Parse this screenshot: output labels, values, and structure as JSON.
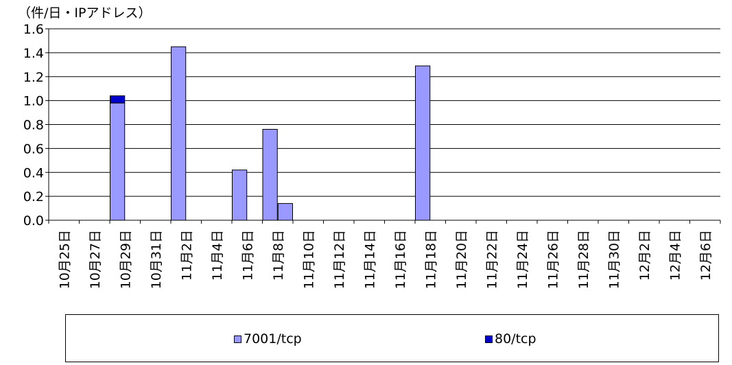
{
  "chart_data": {
    "type": "bar",
    "stacked": true,
    "unit_label": "（件/日・IPアドレス）",
    "categories": [
      "10月25日",
      "10月27日",
      "10月29日",
      "10月31日",
      "11月2日",
      "11月4日",
      "11月6日",
      "11月8日",
      "11月10日",
      "11月12日",
      "11月14日",
      "11月16日",
      "11月18日",
      "11月20日",
      "11月22日",
      "11月24日",
      "11月26日",
      "11月28日",
      "11月30日",
      "12月2日",
      "12月4日",
      "12月6日"
    ],
    "bars": [
      {
        "date": "10月29日",
        "values": {
          "7001/tcp": 0.98,
          "80/tcp": 0.06
        }
      },
      {
        "date": "11月2日",
        "values": {
          "7001/tcp": 1.45,
          "80/tcp": 0
        }
      },
      {
        "date": "11月6日",
        "values": {
          "7001/tcp": 0.42,
          "80/tcp": 0
        }
      },
      {
        "date": "11月8日",
        "values": {
          "7001/tcp": 0.76,
          "80/tcp": 0
        }
      },
      {
        "date": "11月9日",
        "values": {
          "7001/tcp": 0.14,
          "80/tcp": 0
        }
      },
      {
        "date": "11月18日",
        "values": {
          "7001/tcp": 1.29,
          "80/tcp": 0
        }
      }
    ],
    "series": [
      {
        "name": "7001/tcp",
        "color": "#9999ff"
      },
      {
        "name": "80/tcp",
        "color": "#0000cc"
      }
    ],
    "yticks": [
      "0.0",
      "0.2",
      "0.4",
      "0.6",
      "0.8",
      "1.0",
      "1.2",
      "1.4",
      "1.6"
    ],
    "ylim": [
      0,
      1.6
    ],
    "grid": true,
    "legend_position": "bottom"
  }
}
